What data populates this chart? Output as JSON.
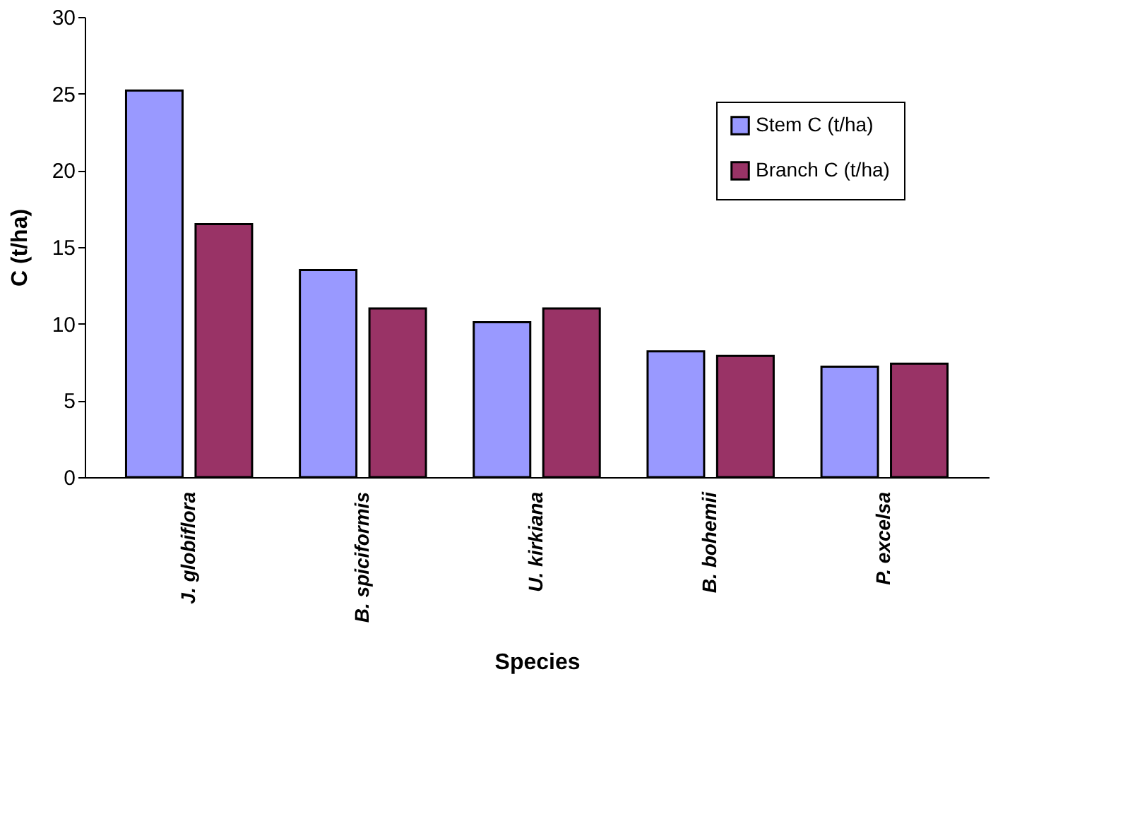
{
  "chart_data": {
    "type": "bar",
    "xlabel": "Species",
    "ylabel": "C (t/ha)",
    "categories": [
      "J. globiflora",
      "B. spiciformis",
      "U. kirkiana",
      "B. bohemii",
      "P. excelsa"
    ],
    "series": [
      {
        "name": "Stem C (t/ha)",
        "color": "#9999ff",
        "values": [
          25.2,
          13.5,
          10.1,
          8.2,
          7.2
        ]
      },
      {
        "name": "Branch C (t/ha)",
        "color": "#993366",
        "values": [
          16.5,
          11.0,
          11.0,
          7.9,
          7.4
        ]
      }
    ],
    "ylim": [
      0,
      30
    ],
    "yticks": [
      0,
      5,
      10,
      15,
      20,
      25,
      30
    ],
    "grid": false,
    "legend": "top right"
  }
}
